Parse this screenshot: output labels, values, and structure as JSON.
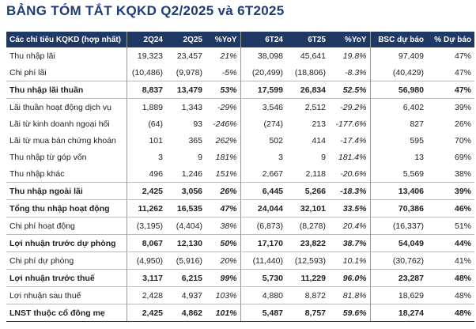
{
  "header": {
    "title": "BẢNG TÓM TẮT KQKD Q2/2025 và 6T2025"
  },
  "table": {
    "columns": [
      "Các chỉ tiêu KQKD (hợp nhất)",
      "2Q24",
      "2Q25",
      "%YoY",
      "6T24",
      "6T25",
      "%YoY",
      "BSC dự báo",
      "% Dự báo"
    ],
    "rows": [
      {
        "cells": [
          "Thu nhập lãi",
          "19,323",
          "23,457",
          "21%",
          "38,098",
          "45,641",
          "19.8%",
          "97,409",
          "47%"
        ],
        "bold": false
      },
      {
        "cells": [
          "Chi phí lãi",
          "(10,486)",
          "(9,978)",
          "-5%",
          "(20,499)",
          "(18,806)",
          "-8.3%",
          "(40,429)",
          "47%"
        ],
        "bold": false
      },
      {
        "cells": [
          "Thu nhập lãi thuần",
          "8,837",
          "13,479",
          "53%",
          "17,599",
          "26,834",
          "52.5%",
          "56,980",
          "47%"
        ],
        "bold": true
      },
      {
        "cells": [
          "Lãi thuần hoạt động dịch vụ",
          "1,889",
          "1,343",
          "-29%",
          "3,546",
          "2,512",
          "-29.2%",
          "6,402",
          "39%"
        ],
        "bold": false
      },
      {
        "cells": [
          "Lãi từ kinh doanh ngoại hối",
          "(64)",
          "93",
          "-246%",
          "(274)",
          "213",
          "-177.6%",
          "827",
          "26%"
        ],
        "bold": false
      },
      {
        "cells": [
          "Lãi từ mua bán chứng khoán",
          "101",
          "365",
          "262%",
          "502",
          "414",
          "-17.4%",
          "595",
          "70%"
        ],
        "bold": false
      },
      {
        "cells": [
          "Thu nhập từ góp vốn",
          "3",
          "9",
          "181%",
          "3",
          "9",
          "181.4%",
          "13",
          "69%"
        ],
        "bold": false
      },
      {
        "cells": [
          "Thu nhập khác",
          "496",
          "1,246",
          "151%",
          "2,667",
          "2,118",
          "-20.6%",
          "5,569",
          "38%"
        ],
        "bold": false
      },
      {
        "cells": [
          "Thu nhập ngoài lãi",
          "2,425",
          "3,056",
          "26%",
          "6,445",
          "5,266",
          "-18.3%",
          "13,406",
          "39%"
        ],
        "bold": true
      },
      {
        "cells": [
          "Tổng thu nhập hoạt động",
          "11,262",
          "16,535",
          "47%",
          "24,044",
          "32,101",
          "33.5%",
          "70,386",
          "46%"
        ],
        "bold": true
      },
      {
        "cells": [
          "Chi phí hoạt động",
          "(3,195)",
          "(4,404)",
          "38%",
          "(6,873)",
          "(8,278)",
          "20.4%",
          "(16,337)",
          "51%"
        ],
        "bold": false
      },
      {
        "cells": [
          "Lợi nhuận trước dự phòng",
          "8,067",
          "12,130",
          "50%",
          "17,170",
          "23,822",
          "38.7%",
          "54,049",
          "44%"
        ],
        "bold": true
      },
      {
        "cells": [
          "Chi phí dự phòng",
          "(4,950)",
          "(5,916)",
          "20%",
          "(11,440)",
          "(12,593)",
          "10.1%",
          "(30,762)",
          "41%"
        ],
        "bold": false
      },
      {
        "cells": [
          "Lợi nhuận trước thuế",
          "3,117",
          "6,215",
          "99%",
          "5,730",
          "11,229",
          "96.0%",
          "23,287",
          "48%"
        ],
        "bold": true
      },
      {
        "cells": [
          "Lợi nhuận sau thuế",
          "2,428",
          "4,937",
          "103%",
          "4,880",
          "8,872",
          "81.8%",
          "18,629",
          "48%"
        ],
        "bold": false
      },
      {
        "cells": [
          "LNST thuộc cổ đông mẹ",
          "2,425",
          "4,862",
          "101%",
          "5,487",
          "8,757",
          "59.6%",
          "18,274",
          "48%"
        ],
        "bold": true
      }
    ]
  }
}
